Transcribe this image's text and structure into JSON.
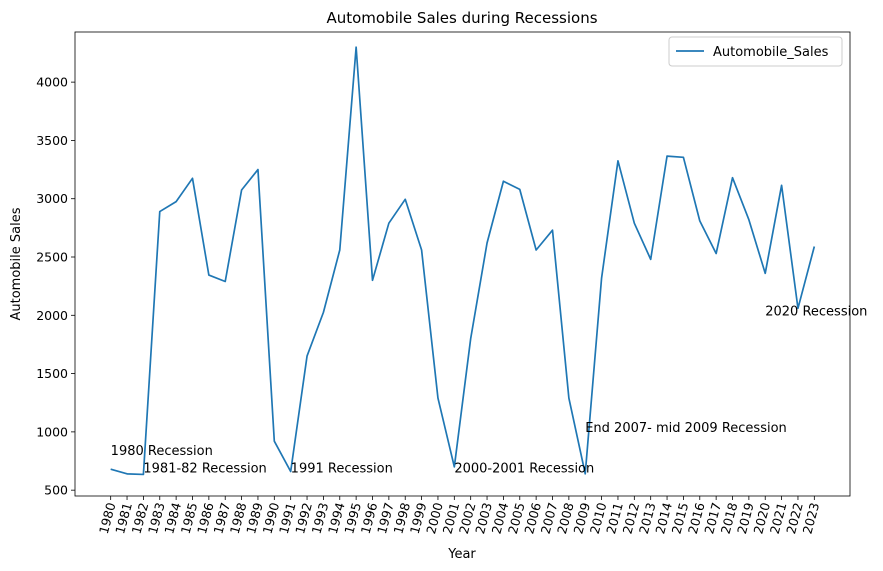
{
  "chart_data": {
    "type": "line",
    "title": "Automobile Sales during Recessions",
    "xlabel": "Year",
    "ylabel": "Automobile Sales",
    "x": [
      1980,
      1981,
      1982,
      1983,
      1984,
      1985,
      1986,
      1987,
      1988,
      1989,
      1990,
      1991,
      1992,
      1993,
      1994,
      1995,
      1996,
      1997,
      1998,
      1999,
      2000,
      2001,
      2002,
      2003,
      2004,
      2005,
      2006,
      2007,
      2008,
      2009,
      2010,
      2011,
      2012,
      2013,
      2014,
      2015,
      2016,
      2017,
      2018,
      2019,
      2020,
      2021,
      2022,
      2023
    ],
    "series": [
      {
        "name": "Automobile_Sales",
        "color": "#1f77b4",
        "values": [
          680,
          640,
          635,
          2890,
          2975,
          3175,
          2345,
          2290,
          3075,
          3250,
          920,
          660,
          1650,
          2025,
          2560,
          4300,
          2300,
          2790,
          2995,
          2560,
          1290,
          700,
          1800,
          2620,
          3150,
          3080,
          2560,
          2730,
          1290,
          640,
          2320,
          3325,
          2790,
          2480,
          3365,
          3355,
          2810,
          2530,
          3180,
          2820,
          2360,
          3115,
          2060,
          2590
        ]
      }
    ],
    "ylim": [
      450,
      4430
    ],
    "yticks": [
      500,
      1000,
      1500,
      2000,
      2500,
      3000,
      3500,
      4000
    ],
    "grid": false,
    "legend_position": "top-right",
    "annotations": [
      {
        "text": "1980 Recession",
        "x": 1980,
        "y": 800
      },
      {
        "text": "1981-82 Recession",
        "x": 1982,
        "y": 650
      },
      {
        "text": "1991 Recession",
        "x": 1991,
        "y": 650
      },
      {
        "text": "2000-2001 Recession",
        "x": 2001,
        "y": 650
      },
      {
        "text": "End 2007- mid 2009 Recession",
        "x": 2009,
        "y": 1000
      },
      {
        "text": "2020 Recession",
        "x": 2020,
        "y": 2000
      }
    ]
  }
}
